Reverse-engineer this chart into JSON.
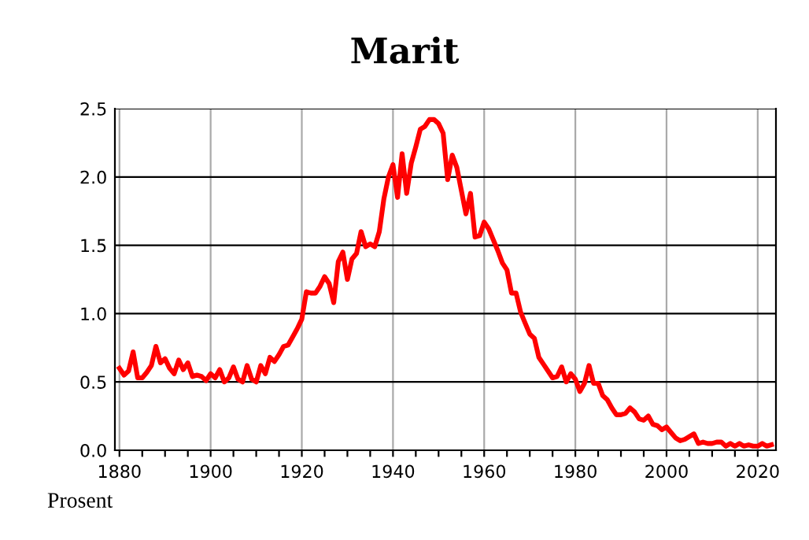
{
  "chart_data": {
    "type": "line",
    "title": "Marit",
    "annotations": [
      "Prosent"
    ],
    "x": [
      1880,
      1881,
      1882,
      1883,
      1884,
      1885,
      1886,
      1887,
      1888,
      1889,
      1890,
      1891,
      1892,
      1893,
      1894,
      1895,
      1896,
      1897,
      1898,
      1899,
      1900,
      1901,
      1902,
      1903,
      1904,
      1905,
      1906,
      1907,
      1908,
      1909,
      1910,
      1911,
      1912,
      1913,
      1914,
      1915,
      1916,
      1917,
      1918,
      1919,
      1920,
      1921,
      1922,
      1923,
      1924,
      1925,
      1926,
      1927,
      1928,
      1929,
      1930,
      1931,
      1932,
      1933,
      1934,
      1935,
      1936,
      1937,
      1938,
      1939,
      1940,
      1941,
      1942,
      1943,
      1944,
      1945,
      1946,
      1947,
      1948,
      1949,
      1950,
      1951,
      1952,
      1953,
      1954,
      1955,
      1956,
      1957,
      1958,
      1959,
      1960,
      1961,
      1962,
      1963,
      1964,
      1965,
      1966,
      1967,
      1968,
      1969,
      1970,
      1971,
      1972,
      1973,
      1974,
      1975,
      1976,
      1977,
      1978,
      1979,
      1980,
      1981,
      1982,
      1983,
      1984,
      1985,
      1986,
      1987,
      1988,
      1989,
      1990,
      1991,
      1992,
      1993,
      1994,
      1995,
      1996,
      1997,
      1998,
      1999,
      2000,
      2001,
      2002,
      2003,
      2004,
      2005,
      2006,
      2007,
      2008,
      2009,
      2010,
      2011,
      2012,
      2013,
      2014,
      2015,
      2016,
      2017,
      2018,
      2019,
      2020,
      2021,
      2022,
      2023
    ],
    "series": [
      {
        "color": "#ff0000",
        "values": [
          0.6,
          0.55,
          0.58,
          0.72,
          0.53,
          0.53,
          0.57,
          0.62,
          0.76,
          0.64,
          0.67,
          0.6,
          0.56,
          0.66,
          0.59,
          0.64,
          0.54,
          0.55,
          0.54,
          0.51,
          0.56,
          0.53,
          0.59,
          0.5,
          0.53,
          0.61,
          0.52,
          0.5,
          0.62,
          0.52,
          0.5,
          0.62,
          0.56,
          0.68,
          0.65,
          0.7,
          0.76,
          0.77,
          0.83,
          0.89,
          0.96,
          1.16,
          1.15,
          1.15,
          1.2,
          1.27,
          1.22,
          1.08,
          1.38,
          1.45,
          1.25,
          1.4,
          1.44,
          1.6,
          1.49,
          1.51,
          1.49,
          1.6,
          1.84,
          2.0,
          2.09,
          1.85,
          2.17,
          1.88,
          2.1,
          2.22,
          2.35,
          2.37,
          2.42,
          2.42,
          2.39,
          2.32,
          1.98,
          2.16,
          2.07,
          1.9,
          1.73,
          1.88,
          1.56,
          1.57,
          1.67,
          1.62,
          1.54,
          1.46,
          1.37,
          1.32,
          1.15,
          1.15,
          1.01,
          0.93,
          0.85,
          0.82,
          0.68,
          0.63,
          0.58,
          0.53,
          0.54,
          0.61,
          0.5,
          0.56,
          0.52,
          0.43,
          0.49,
          0.62,
          0.49,
          0.49,
          0.4,
          0.37,
          0.31,
          0.26,
          0.26,
          0.27,
          0.31,
          0.28,
          0.23,
          0.22,
          0.25,
          0.19,
          0.18,
          0.15,
          0.17,
          0.13,
          0.09,
          0.07,
          0.08,
          0.1,
          0.12,
          0.05,
          0.06,
          0.05,
          0.05,
          0.06,
          0.06,
          0.03,
          0.05,
          0.03,
          0.05,
          0.03,
          0.04,
          0.03,
          0.03,
          0.05,
          0.03,
          0.04
        ]
      }
    ],
    "xlim": [
      1879,
      2024
    ],
    "ylim": [
      0,
      2.5
    ],
    "xticks": [
      1880,
      {
        "value": 1885,
        "label": null
      },
      {
        "value": 1890,
        "label": null
      },
      {
        "value": 1895,
        "label": null
      },
      1900,
      {
        "value": 1905,
        "label": null
      },
      {
        "value": 1910,
        "label": null
      },
      {
        "value": 1915,
        "label": null
      },
      1920,
      {
        "value": 1925,
        "label": null
      },
      {
        "value": 1930,
        "label": null
      },
      {
        "value": 1935,
        "label": null
      },
      1940,
      {
        "value": 1945,
        "label": null
      },
      {
        "value": 1950,
        "label": null
      },
      {
        "value": 1955,
        "label": null
      },
      1960,
      {
        "value": 1965,
        "label": null
      },
      {
        "value": 1970,
        "label": null
      },
      {
        "value": 1975,
        "label": null
      },
      1980,
      {
        "value": 1985,
        "label": null
      },
      {
        "value": 1990,
        "label": null
      },
      {
        "value": 1995,
        "label": null
      },
      2000,
      {
        "value": 2005,
        "label": null
      },
      {
        "value": 2010,
        "label": null
      },
      {
        "value": 2015,
        "label": null
      },
      2020
    ],
    "yticks": [
      {
        "value": 0,
        "label": "0.0"
      },
      {
        "value": 0.5,
        "label": "0.5"
      },
      {
        "value": 1,
        "label": "1.0"
      },
      {
        "value": 1.5,
        "label": "1.5"
      },
      {
        "value": 2,
        "label": "2.0"
      },
      {
        "value": 2.5,
        "label": "2.5"
      }
    ],
    "grid": true,
    "legend": false,
    "marker": "none",
    "line_style": "solid"
  }
}
